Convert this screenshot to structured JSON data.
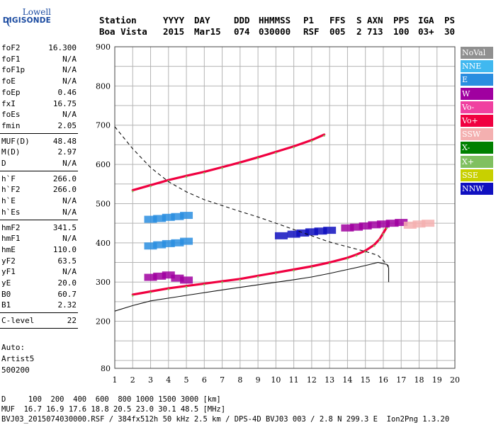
{
  "logo": {
    "line1": "Lowell",
    "line2": "DIGISONDE"
  },
  "header": {
    "row1": [
      "Station",
      "YYYY",
      "DAY",
      "DDD",
      "HHMMSS",
      "P1",
      "FFS",
      "S",
      "AXN",
      "PPS",
      "IGA",
      "PS"
    ],
    "row2": [
      "Boa Vista",
      "2015",
      "Mar15",
      "074",
      "030000",
      "RSF",
      "005",
      "2",
      "713",
      "100",
      "03+",
      "30"
    ]
  },
  "params1": [
    {
      "name": "foF2",
      "value": "16.300"
    },
    {
      "name": "foF1",
      "value": "N/A"
    },
    {
      "name": "foF1p",
      "value": "N/A"
    },
    {
      "name": "foE",
      "value": "N/A"
    },
    {
      "name": "foEp",
      "value": "0.46"
    },
    {
      "name": "fxI",
      "value": "16.75"
    },
    {
      "name": "foEs",
      "value": "N/A"
    },
    {
      "name": "fmin",
      "value": "2.05"
    }
  ],
  "params2": [
    {
      "name": "MUF(D)",
      "value": "48.48"
    },
    {
      "name": "M(D)",
      "value": "2.97"
    },
    {
      "name": "D",
      "value": "N/A"
    }
  ],
  "params3": [
    {
      "name": "h`F",
      "value": "266.0"
    },
    {
      "name": "h`F2",
      "value": "266.0"
    },
    {
      "name": "h`E",
      "value": "N/A"
    },
    {
      "name": "h`Es",
      "value": "N/A"
    }
  ],
  "params4": [
    {
      "name": "hmF2",
      "value": "341.5"
    },
    {
      "name": "hmF1",
      "value": "N/A"
    },
    {
      "name": "hmE",
      "value": "110.0"
    },
    {
      "name": "yF2",
      "value": "63.5"
    },
    {
      "name": "yF1",
      "value": "N/A"
    },
    {
      "name": "yE",
      "value": "20.0"
    },
    {
      "name": "B0",
      "value": "60.7"
    },
    {
      "name": "B1",
      "value": "2.32"
    }
  ],
  "params5": [
    {
      "name": "C-level",
      "value": "22"
    }
  ],
  "auto": {
    "line1": "Auto:",
    "line2": "Artist5",
    "line3": "500200"
  },
  "legend": [
    {
      "label": "NoVal",
      "color": "#909090"
    },
    {
      "label": "NNE",
      "color": "#40b8f0"
    },
    {
      "label": "E",
      "color": "#2a8ee0"
    },
    {
      "label": "W",
      "color": "#a000a0"
    },
    {
      "label": "Vo-",
      "color": "#f040a0"
    },
    {
      "label": "Vo+",
      "color": "#f00040"
    },
    {
      "label": "SSW",
      "color": "#f4b0b0"
    },
    {
      "label": "X-",
      "color": "#008000"
    },
    {
      "label": "X+",
      "color": "#80c060"
    },
    {
      "label": "SSE",
      "color": "#c8d000"
    },
    {
      "label": "NNW",
      "color": "#1010c0"
    }
  ],
  "footer": {
    "line1": "D     100  200  400  600  800 1000 1500 3000 [km]",
    "line2": "MUF  16.7 16.9 17.6 18.8 20.5 23.0 30.1 48.5 [MHz]",
    "line3": "BVJ03_2015074030000.RSF / 384fx512h 50 kHz 2.5 km / DPS-4D BVJ03 003 / 2.8 N 299.3 E  Ion2Png 1.3.20"
  },
  "chart_data": {
    "type": "scatter",
    "title": "",
    "xlabel": "",
    "ylabel": "",
    "xlim": [
      1,
      20
    ],
    "ylim": [
      80,
      900
    ],
    "x_ticks": [
      1,
      2,
      3,
      4,
      5,
      6,
      7,
      8,
      9,
      10,
      11,
      12,
      13,
      14,
      15,
      16,
      17,
      18,
      19,
      20
    ],
    "y_ticks": [
      80,
      200,
      300,
      400,
      500,
      600,
      700,
      800,
      900
    ],
    "grid": true,
    "series": [
      {
        "name": "Vo+",
        "kind": "echo-trace",
        "points": [
          [
            2.0,
            268
          ],
          [
            3,
            276
          ],
          [
            4,
            284
          ],
          [
            5,
            290
          ],
          [
            6,
            296
          ],
          [
            7,
            302
          ],
          [
            8,
            308
          ],
          [
            9,
            316
          ],
          [
            10,
            324
          ],
          [
            11,
            332
          ],
          [
            12,
            340
          ],
          [
            13,
            350
          ],
          [
            14,
            362
          ],
          [
            14.5,
            370
          ],
          [
            15,
            380
          ],
          [
            15.5,
            395
          ],
          [
            15.8,
            410
          ],
          [
            16,
            425
          ],
          [
            16.2,
            440
          ],
          [
            16.3,
            450
          ]
        ]
      },
      {
        "name": "Vo+",
        "kind": "echo-trace",
        "points": [
          [
            2,
            534
          ],
          [
            3,
            547
          ],
          [
            4,
            560
          ],
          [
            5,
            571
          ],
          [
            6,
            581
          ],
          [
            7,
            593
          ],
          [
            8,
            605
          ],
          [
            9,
            618
          ],
          [
            10,
            632
          ],
          [
            11,
            646
          ],
          [
            12,
            662
          ],
          [
            12.7,
            676
          ]
        ]
      },
      {
        "name": "W",
        "kind": "echo-cluster",
        "points": [
          [
            3,
            312
          ],
          [
            3.5,
            315
          ],
          [
            4,
            318
          ],
          [
            4.5,
            310
          ],
          [
            5,
            305
          ]
        ]
      },
      {
        "name": "E",
        "kind": "echo-cluster",
        "points": [
          [
            3,
            392
          ],
          [
            3.5,
            395
          ],
          [
            4,
            398
          ],
          [
            4.5,
            400
          ],
          [
            5,
            404
          ],
          [
            3,
            460
          ],
          [
            3.5,
            462
          ],
          [
            4,
            465
          ],
          [
            4.5,
            467
          ],
          [
            5,
            470
          ]
        ]
      },
      {
        "name": "NNW",
        "kind": "echo-cluster",
        "points": [
          [
            10.3,
            418
          ],
          [
            11,
            422
          ],
          [
            11.5,
            425
          ],
          [
            12,
            428
          ],
          [
            12.5,
            430
          ],
          [
            13,
            432
          ]
        ]
      },
      {
        "name": "W",
        "kind": "echo-cluster",
        "points": [
          [
            14,
            438
          ],
          [
            14.5,
            440
          ],
          [
            15,
            443
          ],
          [
            15.5,
            446
          ],
          [
            16,
            448
          ],
          [
            16.5,
            450
          ],
          [
            17,
            452
          ]
        ]
      },
      {
        "name": "SSW",
        "kind": "echo-cluster",
        "points": [
          [
            17.5,
            445
          ],
          [
            18,
            448
          ],
          [
            18.5,
            450
          ]
        ]
      },
      {
        "name": "",
        "kind": "profile-solid",
        "points": [
          [
            1,
            226
          ],
          [
            2,
            240
          ],
          [
            3,
            252
          ],
          [
            5,
            266
          ],
          [
            7,
            280
          ],
          [
            9,
            293
          ],
          [
            11,
            306
          ],
          [
            12,
            313
          ],
          [
            13,
            322
          ],
          [
            14,
            332
          ],
          [
            15,
            342
          ],
          [
            15.7,
            350
          ],
          [
            16.2,
            345
          ],
          [
            16.3,
            336
          ],
          [
            16.3,
            300
          ]
        ]
      },
      {
        "name": "",
        "kind": "profile-dashed",
        "points": [
          [
            1,
            696
          ],
          [
            2,
            640
          ],
          [
            3,
            592
          ],
          [
            4,
            556
          ],
          [
            5,
            530
          ],
          [
            6,
            510
          ],
          [
            7,
            495
          ],
          [
            8,
            480
          ],
          [
            9,
            466
          ],
          [
            10,
            450
          ],
          [
            11,
            434
          ],
          [
            12,
            418
          ],
          [
            13,
            402
          ],
          [
            14,
            390
          ],
          [
            15,
            378
          ],
          [
            15.7,
            368
          ],
          [
            16,
            355
          ],
          [
            16.3,
            340
          ]
        ]
      }
    ]
  }
}
